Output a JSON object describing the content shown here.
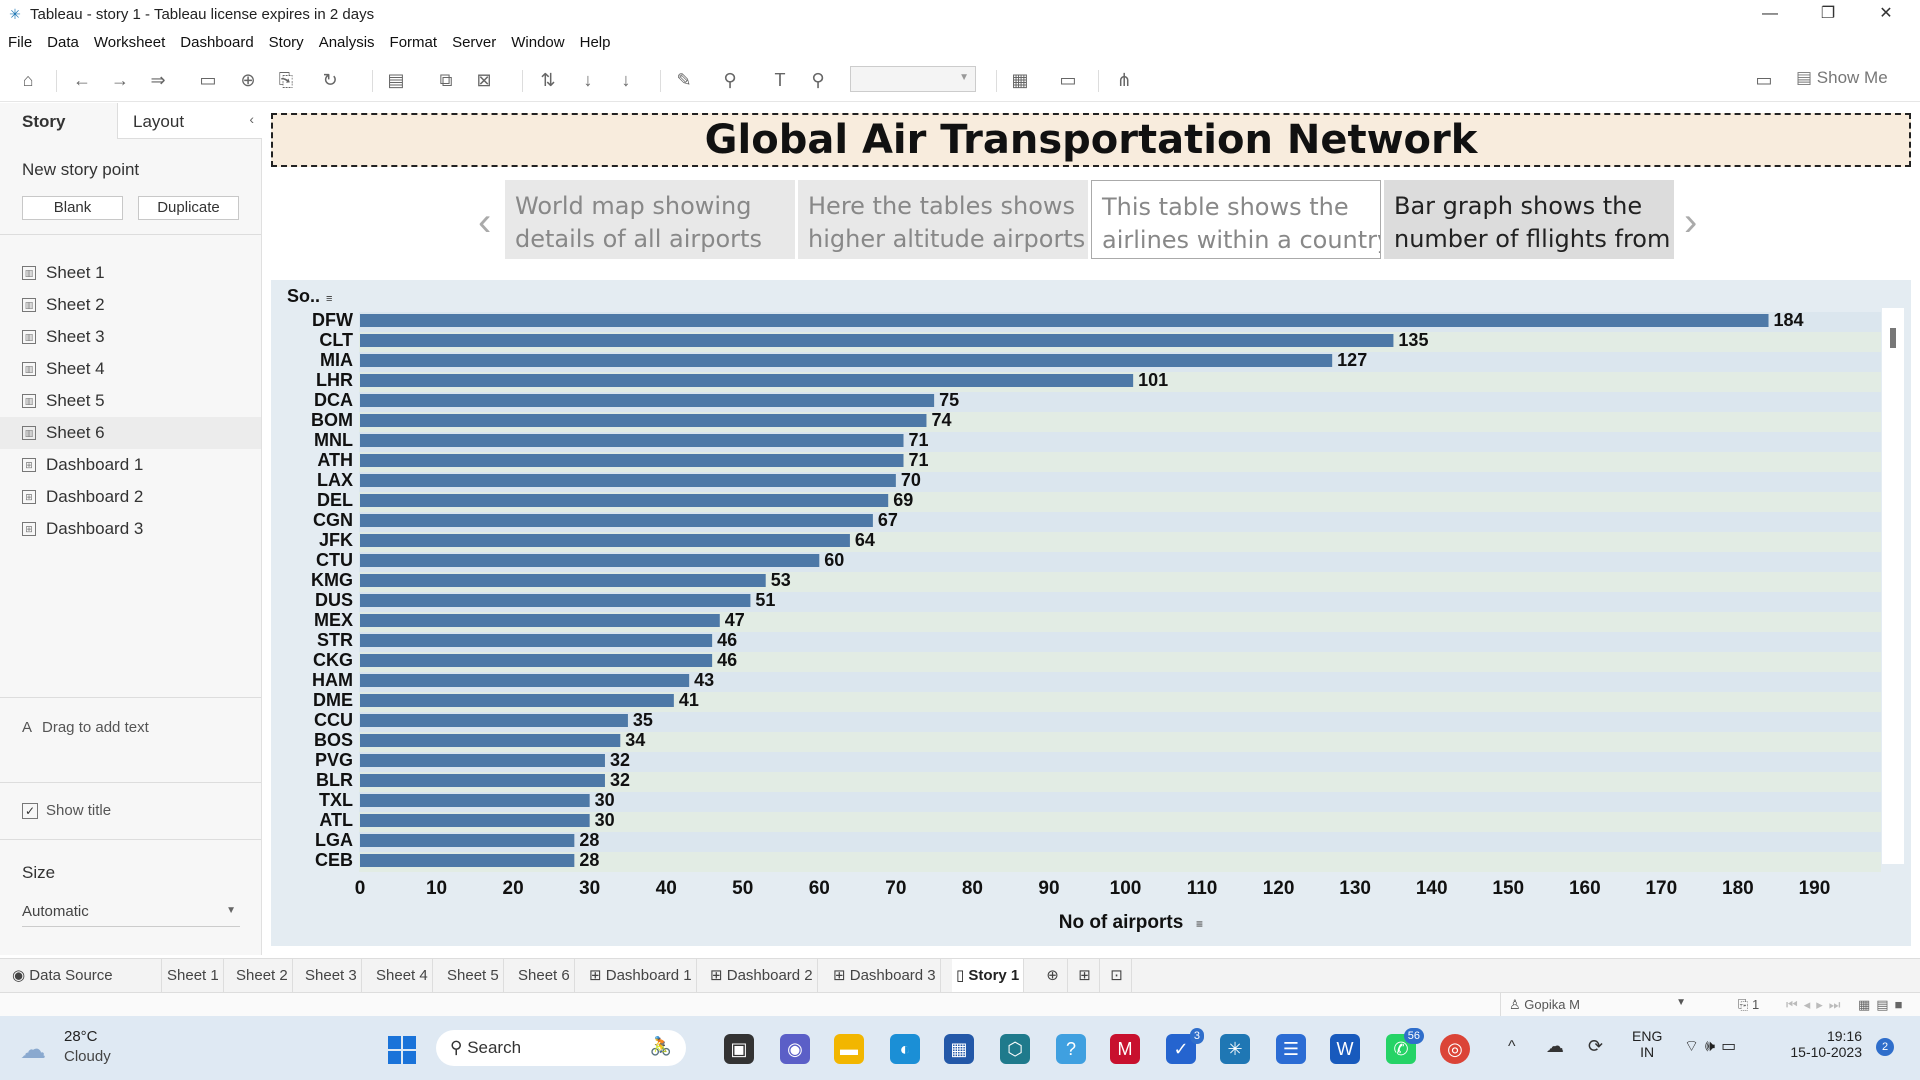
{
  "window": {
    "title": "Tableau - story 1 - Tableau license expires in 2 days",
    "minimize": "—",
    "restore": "❐",
    "close": "✕"
  },
  "menu": [
    "File",
    "Data",
    "Worksheet",
    "Dashboard",
    "Story",
    "Analysis",
    "Format",
    "Server",
    "Window",
    "Help"
  ],
  "toolbar": {
    "show_me": "Show Me"
  },
  "left_panel": {
    "tab_story": "Story",
    "tab_layout": "Layout",
    "new_story_point": "New story point",
    "blank_button": "Blank",
    "duplicate_button": "Duplicate",
    "sheets": [
      "Sheet 1",
      "Sheet 2",
      "Sheet 3",
      "Sheet 4",
      "Sheet 5",
      "Sheet 6",
      "Dashboard 1",
      "Dashboard 2",
      "Dashboard 3"
    ],
    "drag_to_add_text": "Drag to add text",
    "show_title": "Show title",
    "size_label": "Size",
    "size_value": "Automatic"
  },
  "story": {
    "title": "Global Air Transportation Network",
    "points": [
      "World map showing details of all airports",
      "Here the tables shows higher altitude airports",
      "This table shows the airlines within a country",
      "Bar graph shows the number of fllights from"
    ],
    "point_lines": [
      [
        "World map showing",
        "details of all airports"
      ],
      [
        "Here the tables shows",
        "higher altitude airports"
      ],
      [
        "This table shows the",
        "airlines within a country"
      ],
      [
        "Bar graph shows the",
        "number of fllights from"
      ]
    ]
  },
  "chart_data": {
    "type": "bar",
    "orientation": "horizontal",
    "row_header": "So..",
    "xlabel": "No of airports",
    "xlim": [
      0,
      190
    ],
    "xticks": [
      0,
      10,
      20,
      30,
      40,
      50,
      60,
      70,
      80,
      90,
      100,
      110,
      120,
      130,
      140,
      150,
      160,
      170,
      180,
      190
    ],
    "bar_color": "#4e79a7",
    "categories": [
      "DFW",
      "CLT",
      "MIA",
      "LHR",
      "DCA",
      "BOM",
      "MNL",
      "ATH",
      "LAX",
      "DEL",
      "CGN",
      "JFK",
      "CTU",
      "KMG",
      "DUS",
      "MEX",
      "STR",
      "CKG",
      "HAM",
      "DME",
      "CCU",
      "BOS",
      "PVG",
      "BLR",
      "TXL",
      "ATL",
      "LGA",
      "CEB"
    ],
    "values": [
      184,
      135,
      127,
      101,
      75,
      74,
      71,
      71,
      70,
      69,
      67,
      64,
      60,
      53,
      51,
      47,
      46,
      46,
      43,
      41,
      35,
      34,
      32,
      32,
      30,
      30,
      28,
      28
    ]
  },
  "bottom_tabs": [
    "Data Source",
    "Sheet 1",
    "Sheet 2",
    "Sheet 3",
    "Sheet 4",
    "Sheet 5",
    "Sheet 6",
    "Dashboard 1",
    "Dashboard 2",
    "Dashboard 3",
    "Story 1"
  ],
  "status": {
    "user": "Gopika M",
    "page_count": "1"
  },
  "taskbar": {
    "weather_temp": "28°C",
    "weather_desc": "Cloudy",
    "search": "Search",
    "lang_1": "ENG",
    "lang_2": "IN",
    "time": "19:16",
    "date": "15-10-2023",
    "badge_todo": "3",
    "badge_whatsapp": "56",
    "notif_count": "2"
  }
}
